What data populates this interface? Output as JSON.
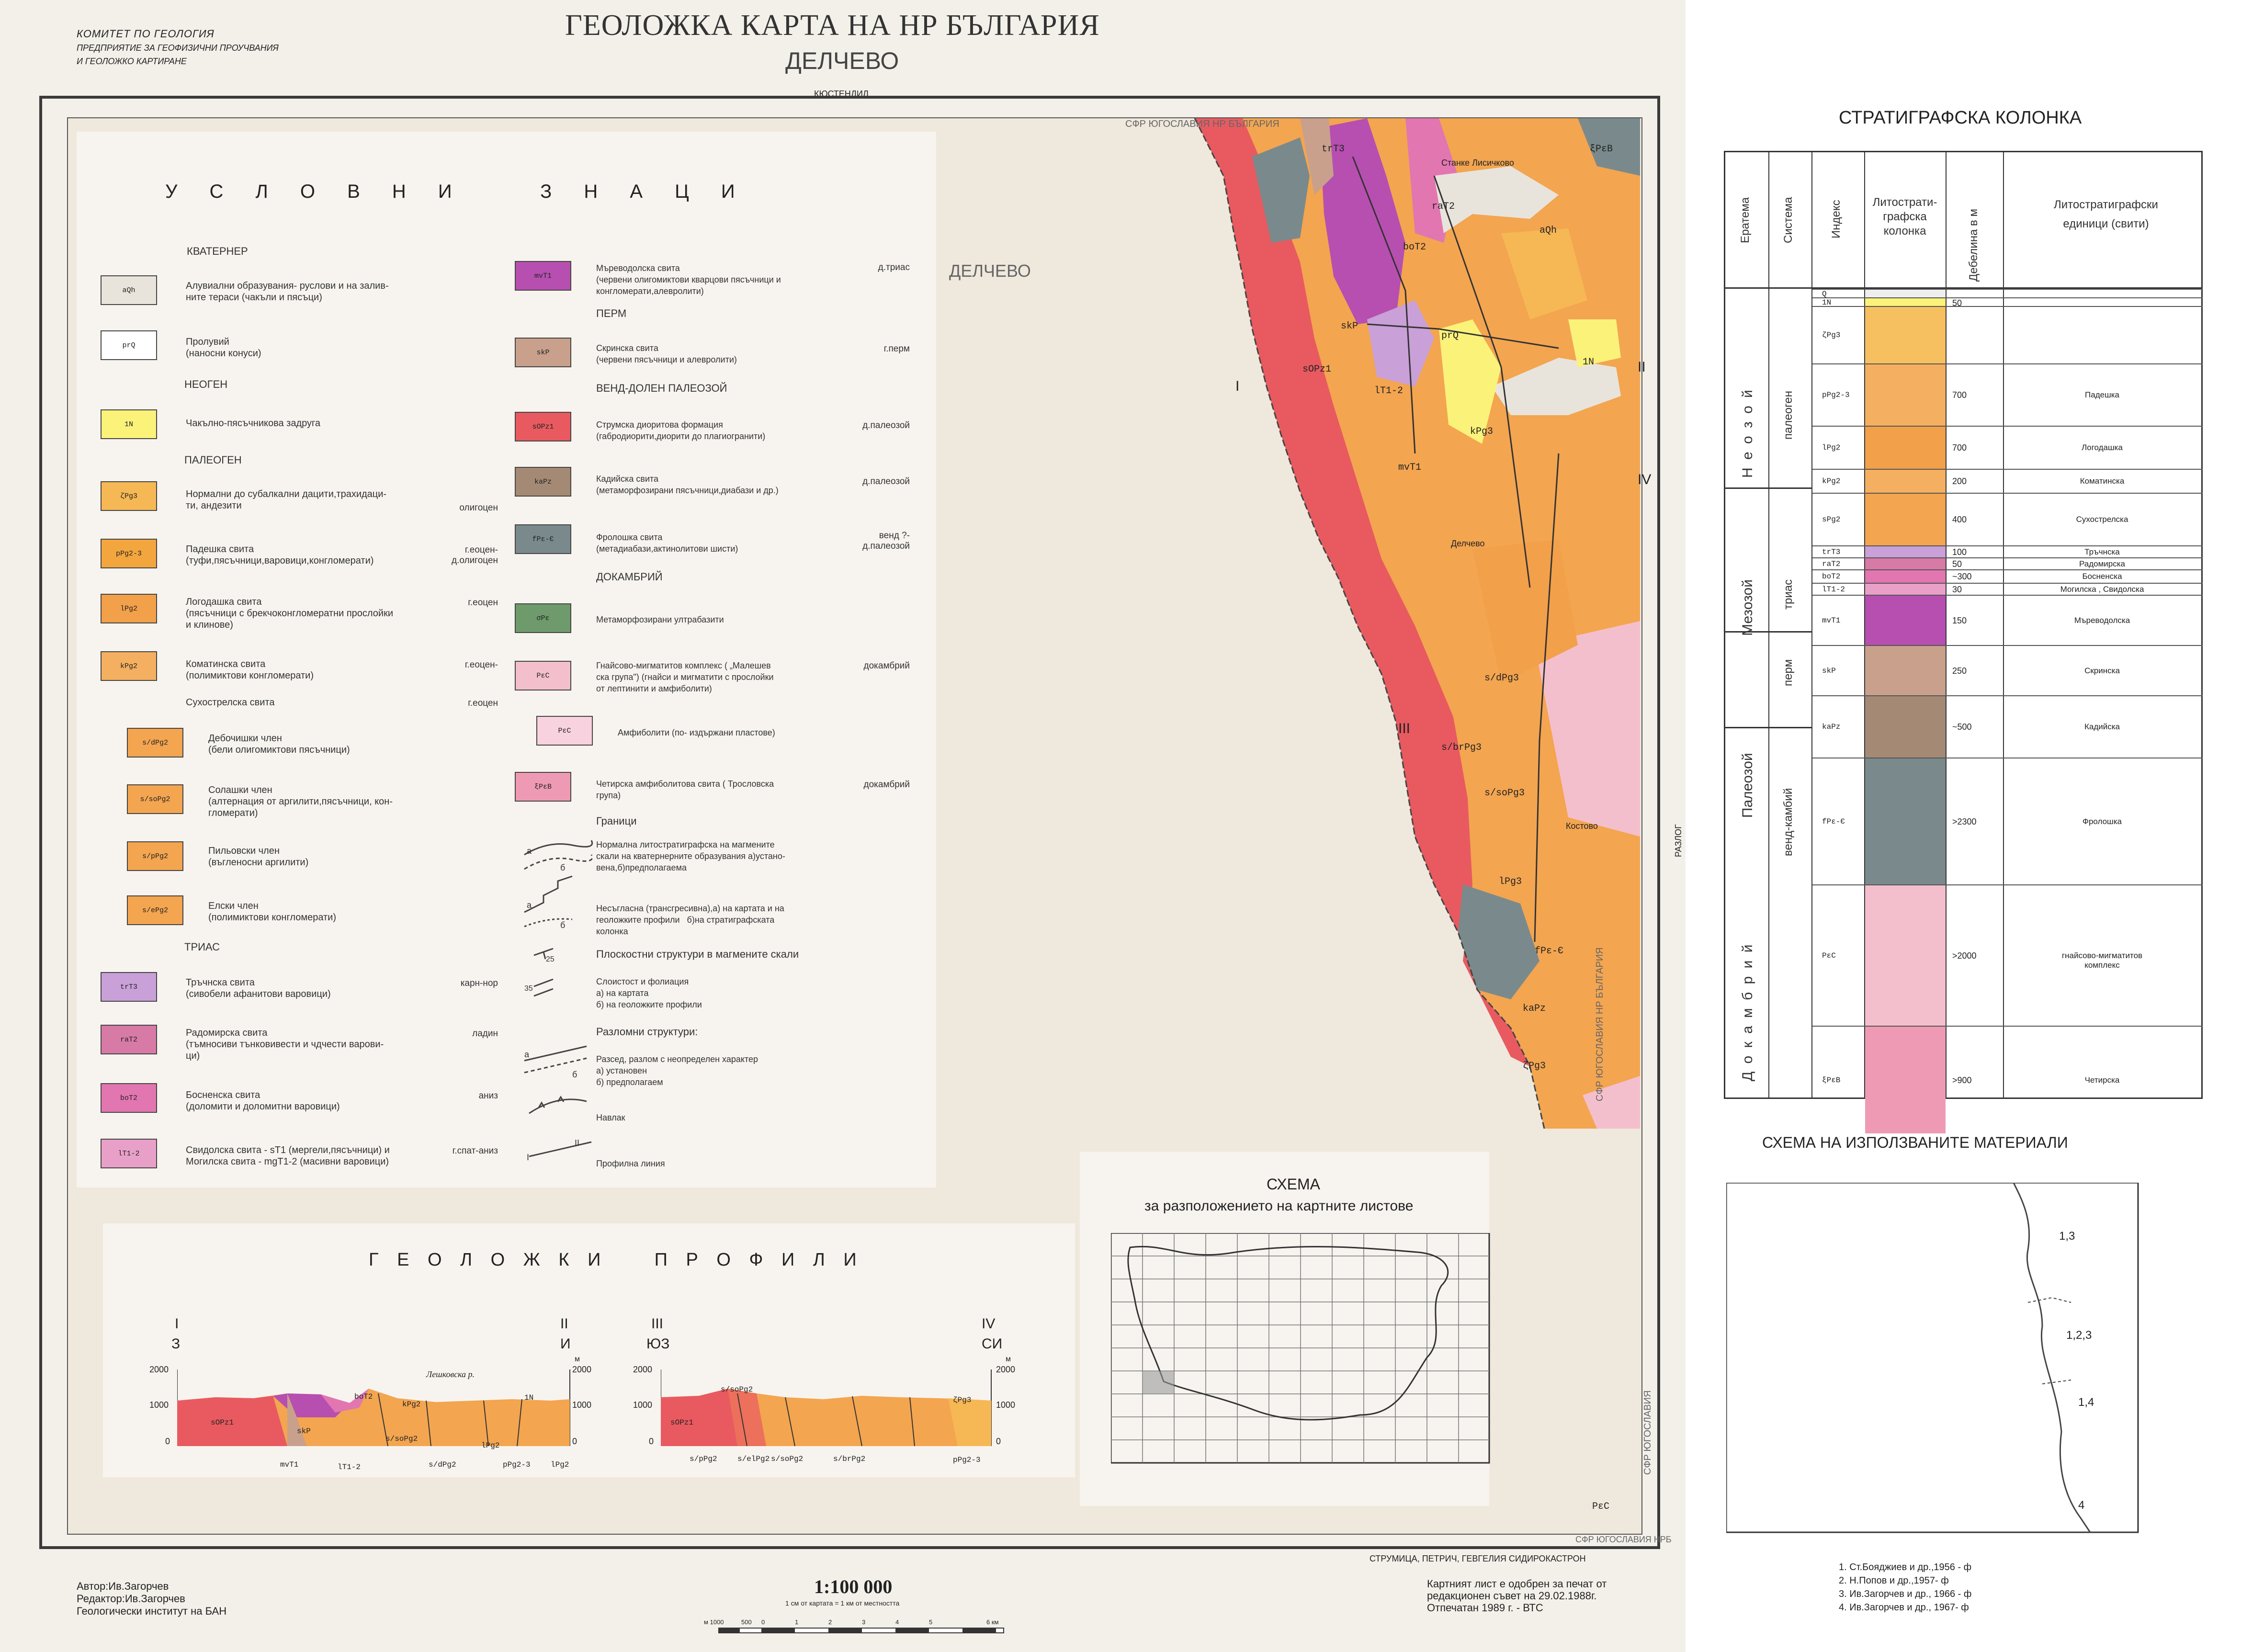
{
  "header": {
    "org_line1": "КОМИТЕТ ПО ГЕОЛОГИЯ",
    "org_line2": "ПРЕДПРИЯТИЕ ЗА ГЕОФИЗИЧНИ ПРОУЧВАНИЯ",
    "org_line3": "И ГЕОЛОЖКО КАРТИРАНЕ",
    "title": "ГЕОЛОЖКА КАРТА НА НР БЪЛГАРИЯ",
    "sheet": "ДЕЛЧЕВО",
    "north_neighbor": "КЮСТЕНДИЛ"
  },
  "map": {
    "city": "ДЕЛЧЕВО",
    "border_top": "СФР ЮГОСЛАВИЯ   НР БЪЛГАРИЯ",
    "border_side": "СФР ЮГОСЛАВИЯ   НР БЪЛГАРИЯ",
    "border_side2": "СФР ЮГОСЛАВИЯ",
    "border_bottom_right": "СФР ЮГОСЛАВИЯ  НРБ",
    "east_neighbor": "РАЗЛОГ",
    "south_neighbor": "СТРУМИЦА, ПЕТРИЧ, ГЕВГЕЛИЯ  СИДИРОКАСТРОН",
    "profile_marks": [
      "I",
      "II",
      "III",
      "IV"
    ],
    "towns": [
      "Станке Лисичково",
      "Делчево",
      "Костово"
    ],
    "units": [
      "aQh",
      "prQ",
      "1N",
      "boT2",
      "lT1-2",
      "mvT1",
      "skP",
      "sOPz1",
      "kaPz",
      "fPε-Є",
      "s/dPg3",
      "s/soPg3",
      "s/brPg3",
      "lPg3",
      "kPg3",
      "ζPg3",
      "PεC",
      "ξPεB",
      "trT3",
      "raT2"
    ]
  },
  "legend": {
    "title": "У С Л О В Н И    З Н А Ц И",
    "sections": {
      "quaternary": "КВАТЕРНЕР",
      "neogene": "НЕОГЕН",
      "paleogene": "ПАЛЕОГЕН",
      "triassic": "ТРИАС",
      "permian": "ПЕРМ",
      "vend": "ВЕНД-ДОЛЕН ПАЛЕОЗОЙ",
      "precambrian": "ДОКАМБРИЙ",
      "boundaries": "Граници",
      "planar": "Плоскостни структури в магмените скали",
      "faults": "Разломни структури:"
    },
    "left_items": [
      {
        "code": "aQh",
        "color": "#e8e4dc",
        "text": "Алувиални образувания- руслови и на залив-\nните тераси (чакъли и пясъци)",
        "age": ""
      },
      {
        "code": "prQ",
        "color": "#ffffff",
        "text": "Пролувий\n(наносни конуси)",
        "age": ""
      },
      {
        "code": "1N",
        "color": "#fbf27a",
        "text": "Чакълно-пясъчникова задруга",
        "age": ""
      },
      {
        "code": "ζPg3",
        "color": "#f6b855",
        "text": "Нормални до субалкални дацити,трахидаци-\nти, андезити",
        "age": "олигоцен"
      },
      {
        "code": "pPg2-3",
        "color": "#f4a63e",
        "text": "Падешка свита\n(туфи,пясъчници,варовици,конгломерати)",
        "age": "г.еоцен-\nд.олигоцен"
      },
      {
        "code": "lPg2",
        "color": "#f2a04a",
        "text": "Логодашка свита\n(пясъчници с брекчоконгломератни прослойки\nи клинове)",
        "age": "г.еоцен"
      },
      {
        "code": "kPg2",
        "color": "#f4b060",
        "text": "Коматинска свита\n(полимиктови конгломерати)",
        "age": "г.еоцен-"
      },
      {
        "code": "",
        "color": "",
        "text": "Сухострелска свита",
        "age": "г.еоцен"
      },
      {
        "code": "s/dPg2",
        "color": "#f3a550",
        "text": "Дебочишки член\n(бели олигомиктови пясъчници)",
        "age": ""
      },
      {
        "code": "s/soPg2",
        "color": "#f3a550",
        "text": "Солашки член\n(алтернация от аргилити,пясъчници, кон-\nгломерати)",
        "age": ""
      },
      {
        "code": "s/pPg2",
        "color": "#f3a550",
        "text": "Пильовски член\n(въгленосни аргилити)",
        "age": ""
      },
      {
        "code": "s/ePg2",
        "color": "#f3a550",
        "text": "Елски член\n(полимиктови конгломерати)",
        "age": ""
      },
      {
        "code": "trT3",
        "color": "#c9a0d8",
        "text": "Тръчнска свита\n(сивобели афанитови варовици)",
        "age": "карн-нор"
      },
      {
        "code": "raT2",
        "color": "#d77aa6",
        "text": "Радомирска свита\n(тъмносиви тънковивести и чдчести варови-\nци)",
        "age": "ладин"
      },
      {
        "code": "boT2",
        "color": "#e276b0",
        "text": "Босненска свита\n(доломити и доломитни варовици)",
        "age": "аниз"
      },
      {
        "code": "lT1-2",
        "color": "#e8a0c8",
        "text": "Свидолска свита - sT1 (мергели,пясъчници) и\nМогилска свита - mgT1-2 (масивни варовици)",
        "age": "г.спат-аниз"
      }
    ],
    "right_items": [
      {
        "code": "mvT1",
        "color": "#b74fb0",
        "text": "Мъреводолска свита\n(червени олигомиктови кварцови пясъчници и\nконгломерати,алевролити)",
        "age": "д.триас"
      },
      {
        "code": "skP",
        "color": "#c9a08c",
        "text": "Скринска свита\n(червени пясъчници и алевролити)",
        "age": "г.перм"
      },
      {
        "code": "sOPz1",
        "color": "#e85a60",
        "text": "Струмска диоритова формация\n(габродиорити,диорити до плагиогранити)",
        "age": "д.палеозой"
      },
      {
        "code": "kaPz",
        "color": "#a48a74",
        "text": "Кадийска свита\n(метаморфозирани пясъчници,диабази и др.)",
        "age": "д.палеозой"
      },
      {
        "code": "fPε-Є",
        "color": "#7a8a8c",
        "text": "Фролошка свита\n(метадиабази,актинолитови шисти)",
        "age": "венд ?-\nд.палеозой"
      },
      {
        "code": "σPε",
        "color": "#6f9b6c",
        "text": "Метаморфозирани ултрабазити",
        "age": ""
      },
      {
        "code": "PεC",
        "color": "#f4bfcc",
        "text": "Гнайсово-мигматитов комплекс ( „Малешев\nска група\") (гнайси и мигматити с прослойки\nот лептинити и амфиболити)",
        "age": "докамбрий"
      },
      {
        "code": "PεC",
        "color": "#f8d2de",
        "text": "Амфиболити (по- издържани пластове)",
        "age": ""
      },
      {
        "code": "ξPεB",
        "color": "#ef9ab4",
        "text": "Четирска амфиболитова свита ( Трословска\nгрупа)",
        "age": "докамбрий"
      }
    ],
    "symbols": [
      {
        "text": "Нормална литостратиграфска на магмените\nскали на кватернерните образувания а)устано-\nвена,б)предполагаема"
      },
      {
        "text": "Несъгласна (трансгресивна),а) на картата и на\nгеоложките профили   б)на стратиграфската\nколонка"
      },
      {
        "text": "Слоистост и фолиация\na) на картата\nб) на геоложките профили"
      },
      {
        "text": "Разсед, разлом с неопределен характер\na) установен\nб) предполагаем"
      },
      {
        "text": "Навлак"
      },
      {
        "text": "Профилна линия"
      }
    ],
    "symbol_marks": {
      "a": "а",
      "b": "б",
      "dip1": "25",
      "dip2": "35",
      "i": "I",
      "ii": "II"
    }
  },
  "profiles": {
    "title": "Г Е О Л О Ж К И    П Р О Ф И Л И",
    "p1": {
      "start": "I",
      "end": "II",
      "start_dir": "З",
      "end_dir": "И",
      "unit": "м",
      "ticks": [
        "2000",
        "1000",
        "0"
      ],
      "river": "Лешковска р.",
      "labels": [
        "sOPz1",
        "skP",
        "mvT1",
        "lT1-2",
        "boT2",
        "kPg2",
        "s/soPg2",
        "s/dPg2",
        "lPg2",
        "pPg2-3",
        "lPg2",
        "1N"
      ]
    },
    "p2": {
      "start": "III",
      "end": "IV",
      "start_dir": "ЮЗ",
      "end_dir": "СИ",
      "unit": "м",
      "ticks": [
        "2000",
        "1000",
        "0"
      ],
      "labels": [
        "sOPz1",
        "s/soPg2",
        "s/pPg2",
        "s/elPg2",
        "s/soPg2",
        "s/brPg2",
        "ζPg3",
        "pPg2-3"
      ]
    }
  },
  "schema": {
    "title": "СХЕМА",
    "subtitle": "за разположението на картните листове"
  },
  "footer": {
    "author": "Автор:Ив.Загорчев",
    "editor": "Редактор:Ив.Загорчев",
    "institute": "Геологически институт на БАН",
    "scale": "1:100 000",
    "scale_note": "1 см от картата = 1 км от местността",
    "bar_labels": [
      "м 1000",
      "500",
      "0",
      "1",
      "2",
      "3",
      "4",
      "5",
      "6 км"
    ],
    "approval_line1": "Картният лист е одобрен за печат от",
    "approval_line2": "редакционен съвет на  29.02.1988г.",
    "approval_line3": "Отпечатан 1989 г. - ВТС"
  },
  "strat": {
    "title": "СТРАТИГРАФСКА КОЛОНКА",
    "headers": {
      "eratema": "Ератема",
      "sistema": "Система",
      "index": "Индекс",
      "column": "Литострати-\nграфска\nколонка",
      "thickness": "Дебелина в м",
      "units": "Литостратиграфски\nединици (свити)"
    },
    "eras": [
      "Н е о з о й",
      "Мезозой",
      "Палеозой",
      "Д о к а м б р и й"
    ],
    "systems": [
      "палеоген",
      "триас",
      "перм",
      "венд-камбий"
    ],
    "rows": [
      {
        "index": "Q",
        "thickness": "",
        "name": "",
        "color": "#eee"
      },
      {
        "index": "1N",
        "thickness": "50",
        "name": "",
        "color": "#fbf27a"
      },
      {
        "index": "ζPg3",
        "thickness": "",
        "name": "",
        "color": "#f6c060"
      },
      {
        "index": "pPg2-3",
        "thickness": "700",
        "name": "Падешка",
        "color": "#f4b060"
      },
      {
        "index": "lPg2",
        "thickness": "700",
        "name": "Логодашка",
        "color": "#f2a04a"
      },
      {
        "index": "kPg2",
        "thickness": "200",
        "name": "Коматинска",
        "color": "#f4b060"
      },
      {
        "index": "sPg2",
        "thickness": "400",
        "name": "Сухострелска",
        "color": "#f3a550"
      },
      {
        "index": "trT3",
        "thickness": "100",
        "name": "Тръчнска",
        "color": "#c9a0d8"
      },
      {
        "index": "raT2",
        "thickness": "50",
        "name": "Радомирска",
        "color": "#d77aa6"
      },
      {
        "index": "boT2",
        "thickness": "~300",
        "name": "Босненска",
        "color": "#e276b0"
      },
      {
        "index": "lT1-2",
        "thickness": "30",
        "name": "Могилска , Свидолска",
        "color": "#e8a0c8"
      },
      {
        "index": "mvT1",
        "thickness": "150",
        "name": "Мъреводолска",
        "color": "#b74fb0"
      },
      {
        "index": "skP",
        "thickness": "250",
        "name": "Скринска",
        "color": "#c9a08c"
      },
      {
        "index": "kaPz",
        "thickness": "~500",
        "name": "Кадийска",
        "color": "#a48a74"
      },
      {
        "index": "fPε-Є",
        "thickness": ">2300",
        "name": "Фролошка",
        "color": "#7a8a8c"
      },
      {
        "index": "PεC",
        "thickness": ">2000",
        "name": "гнайсово-мигматитов\nкомплекс",
        "color": "#f4bfcc"
      },
      {
        "index": "ξPεB",
        "thickness": ">900",
        "name": "Четирска",
        "color": "#ef9ab4"
      }
    ],
    "top_marks": [
      "0"
    ]
  },
  "materials": {
    "title": "СХЕМА НА ИЗПОЛЗВАНИТЕ МАТЕРИАЛИ",
    "labels": [
      "1,3",
      "1,2,3",
      "1,4",
      "4"
    ],
    "refs": [
      "1. Ст.Бояджиев и др.,1956 - ф",
      "2. Н.Попов и др.,1957- ф",
      "3. Ив.Загорчев и др., 1966 - ф",
      "4. Ив.Загорчев и др., 1967- ф"
    ]
  }
}
